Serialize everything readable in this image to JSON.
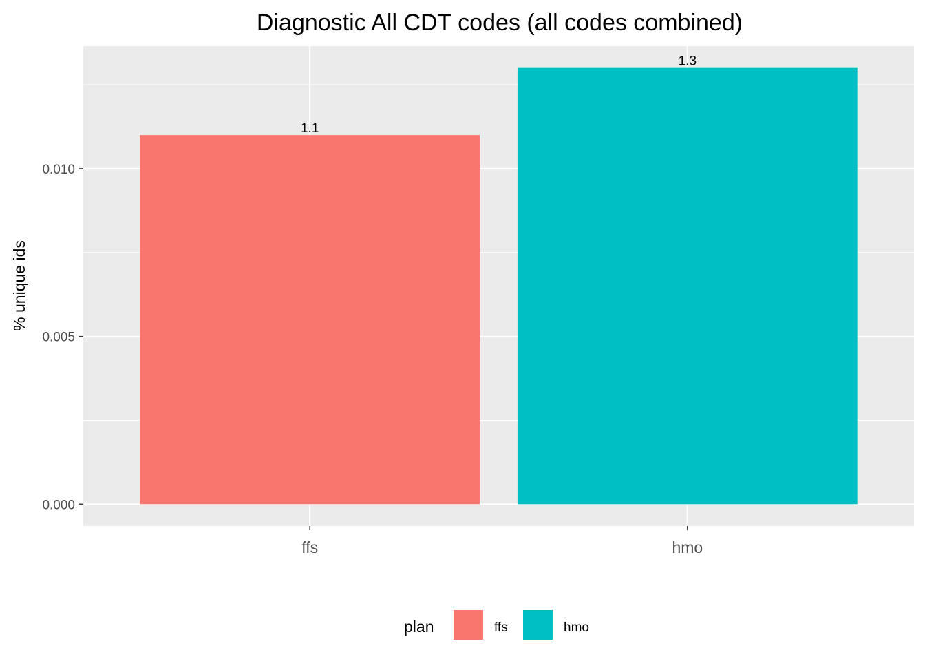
{
  "chart_data": {
    "type": "bar",
    "title": "Diagnostic All CDT codes (all codes combined)",
    "xlabel": "",
    "ylabel": "% unique ids",
    "categories": [
      "ffs",
      "hmo"
    ],
    "values": [
      0.011,
      0.013
    ],
    "data_labels": [
      "1.1",
      "1.3"
    ],
    "colors": [
      "#F8766D",
      "#00BFC4"
    ],
    "ylim": [
      -0.00065,
      0.01365
    ],
    "yticks": [
      0.0,
      0.005,
      0.01
    ],
    "ytick_labels": [
      "0.000",
      "0.005",
      "0.010"
    ],
    "grid": true,
    "panel_background": "#EBEBEB",
    "legend": {
      "title": "plan",
      "position": "bottom",
      "entries": [
        "ffs",
        "hmo"
      ]
    }
  }
}
